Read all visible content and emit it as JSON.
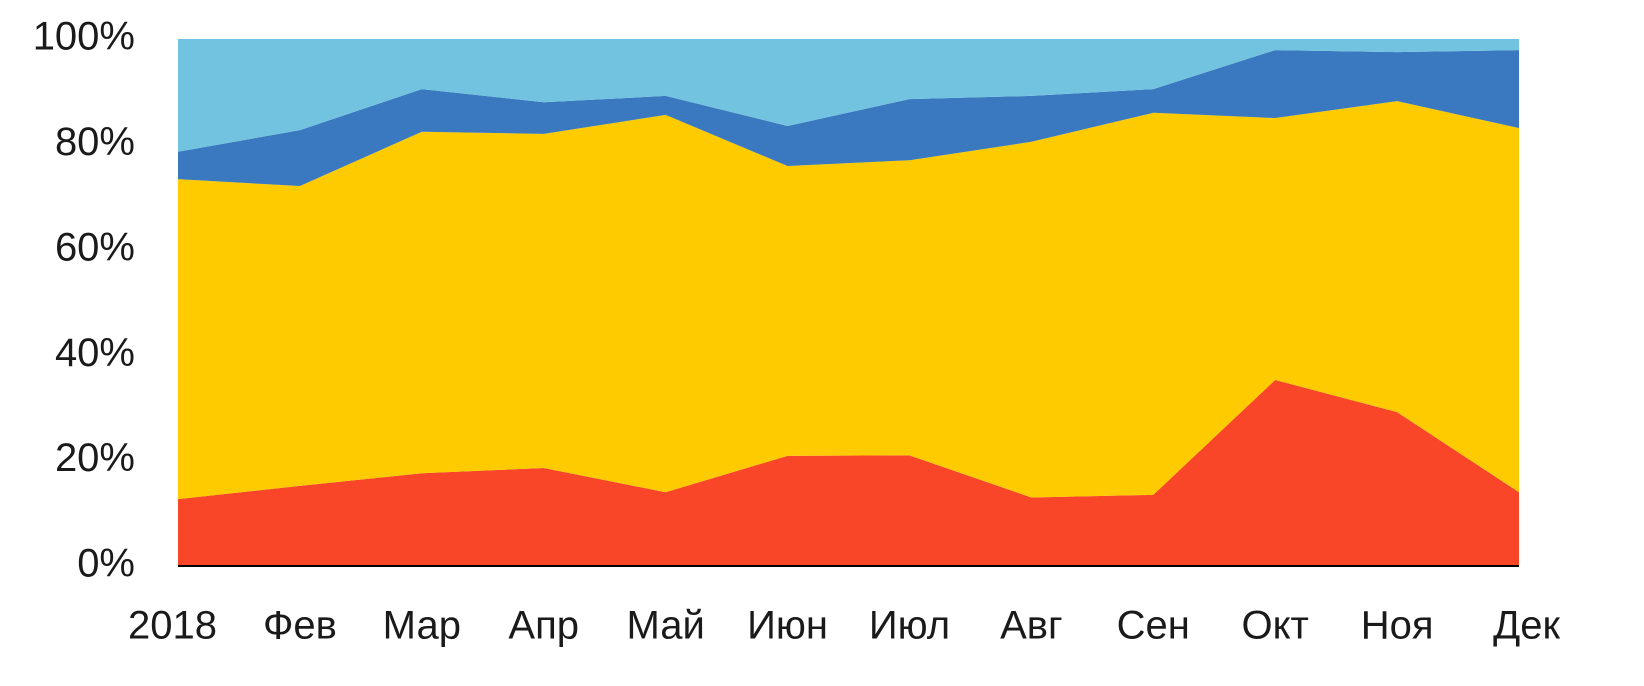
{
  "chart_data": {
    "type": "stacked_area",
    "categories": [
      "2018",
      "Фев",
      "Мар",
      "Апр",
      "Май",
      "Июн",
      "Июл",
      "Авг",
      "Сен",
      "Окт",
      "Ноя",
      "Дек"
    ],
    "series": [
      {
        "color": "#f94628",
        "values": [
          12.7,
          15.2,
          17.6,
          18.6,
          14,
          20.9,
          21,
          13,
          13.5,
          35.3,
          29.2,
          14
        ]
      },
      {
        "color": "#fdcb00",
        "values": [
          60.7,
          56.9,
          64.8,
          63.4,
          71.6,
          55,
          56,
          67.5,
          72.5,
          49.7,
          59,
          69.1
        ]
      },
      {
        "color": "#3a78c0",
        "values": [
          5.2,
          10.6,
          8.1,
          6,
          3.6,
          7.6,
          11.6,
          8.7,
          4.5,
          12.9,
          9.3,
          14.8
        ]
      },
      {
        "color": "#72c3e0",
        "values": [
          21.4,
          17.3,
          9.5,
          12,
          10.8,
          16.5,
          11.4,
          10.8,
          9.5,
          2.1,
          2.5,
          2.1
        ]
      }
    ],
    "ylim": [
      0,
      100
    ],
    "yticks": [
      {
        "value": 0,
        "label": "0%"
      },
      {
        "value": 20,
        "label": "20%"
      },
      {
        "value": 40,
        "label": "40%"
      },
      {
        "value": 60,
        "label": "60%"
      },
      {
        "value": 80,
        "label": "80%"
      },
      {
        "value": 100,
        "label": "100%"
      }
    ],
    "grid": false
  }
}
